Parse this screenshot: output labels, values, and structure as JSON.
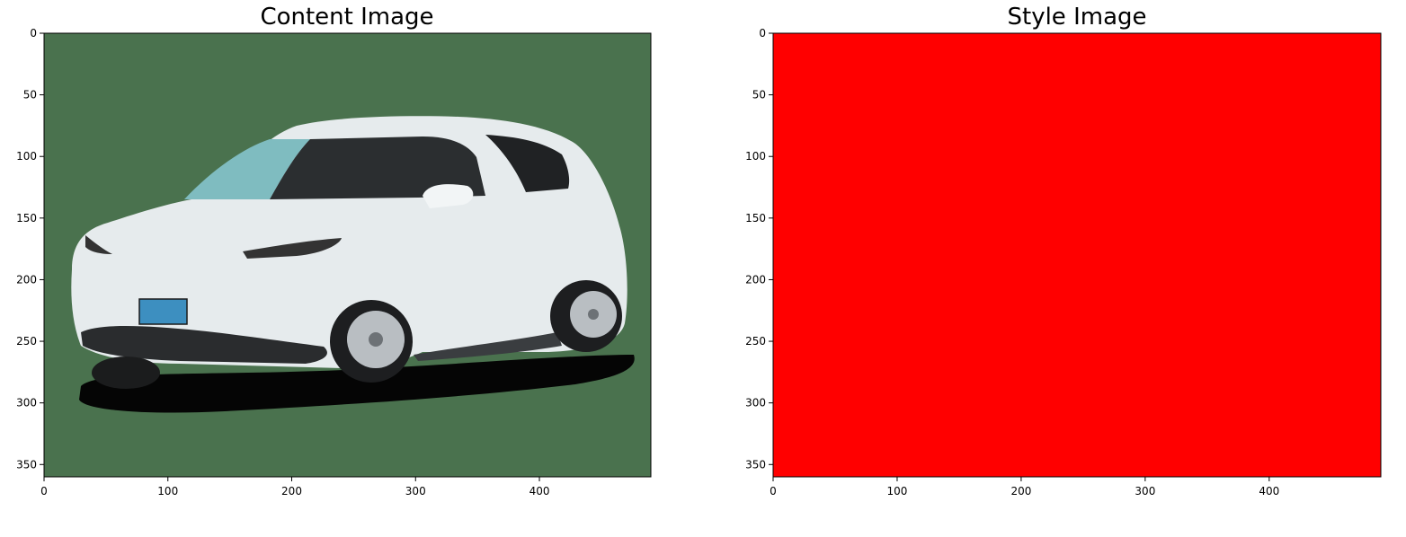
{
  "figure": {
    "panels": [
      {
        "title": "Content Image",
        "image_kind": "car-photo",
        "x_ticks": [
          0,
          100,
          200,
          300,
          400
        ],
        "y_ticks": [
          0,
          50,
          100,
          150,
          200,
          250,
          300,
          350
        ],
        "x_range": [
          0,
          490
        ],
        "y_range": [
          0,
          360
        ],
        "background_color": "#4a724e",
        "car_color": "#e9eef0"
      },
      {
        "title": "Style Image",
        "image_kind": "solid-color",
        "x_ticks": [
          0,
          100,
          200,
          300,
          400
        ],
        "y_ticks": [
          0,
          50,
          100,
          150,
          200,
          250,
          300,
          350
        ],
        "x_range": [
          0,
          490
        ],
        "y_range": [
          0,
          360
        ],
        "fill_color": "#ff0000"
      }
    ]
  }
}
